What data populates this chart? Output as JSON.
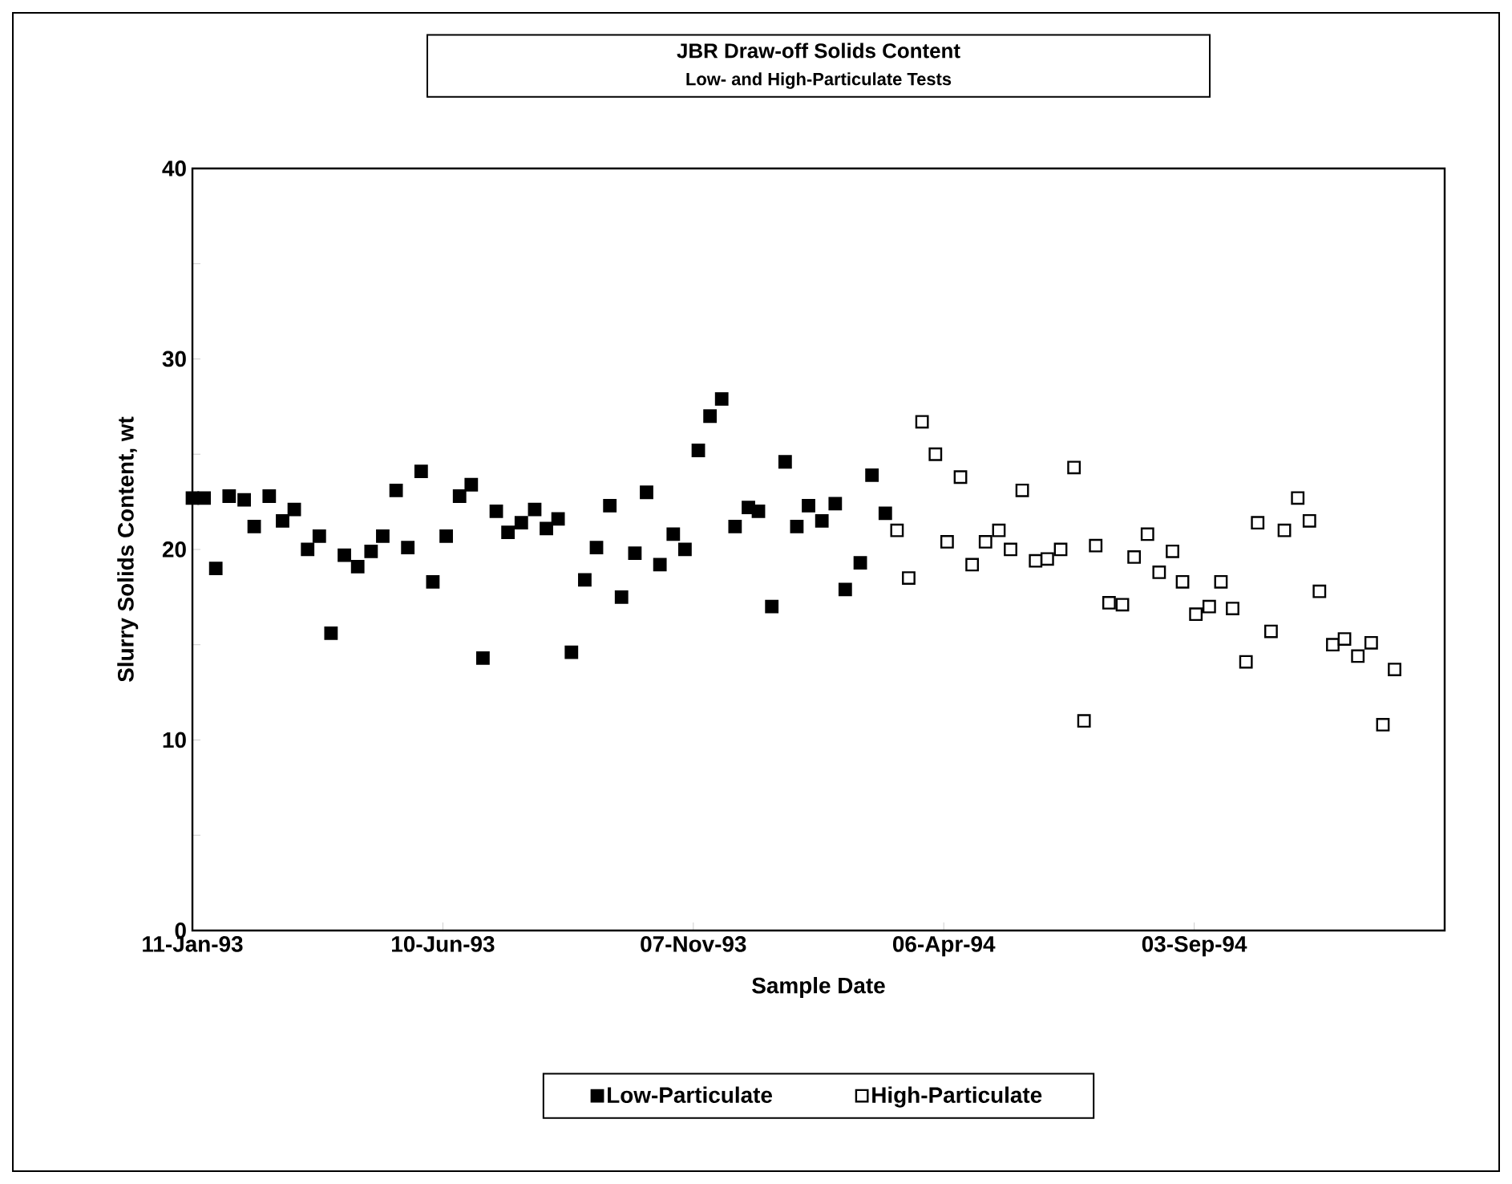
{
  "chart_data": {
    "type": "scatter",
    "title": "JBR Draw-off Solids Content",
    "subtitle": "Low- and High-Particulate Tests",
    "xlabel": "Sample Date",
    "ylabel": "Slurry Solids Content, wt",
    "xlim": [
      "1993-01-11",
      "1995-01-31"
    ],
    "xticks": [
      {
        "value": "1993-01-11",
        "label": "11-Jan-93"
      },
      {
        "value": "1993-06-10",
        "label": "10-Jun-93"
      },
      {
        "value": "1993-11-07",
        "label": "07-Nov-93"
      },
      {
        "value": "1994-04-06",
        "label": "06-Apr-94"
      },
      {
        "value": "1994-09-03",
        "label": "03-Sep-94"
      }
    ],
    "ylim": [
      0,
      40
    ],
    "yticks": [
      0,
      {
        "value": 5,
        "label": null
      },
      10,
      {
        "value": 15,
        "label": null
      },
      20,
      {
        "value": 25,
        "label": null
      },
      30,
      {
        "value": 35,
        "label": null
      },
      40
    ],
    "marker": "square",
    "legend": "bottom",
    "grid": false,
    "series": [
      {
        "name": "Low-Particulate",
        "color": "#000000",
        "x": [
          "1993-01-11",
          "1993-01-18",
          "1993-01-25",
          "1993-02-02",
          "1993-02-11",
          "1993-02-17",
          "1993-02-26",
          "1993-03-06",
          "1993-03-13",
          "1993-03-21",
          "1993-03-28",
          "1993-04-04",
          "1993-04-12",
          "1993-04-20",
          "1993-04-28",
          "1993-05-05",
          "1993-05-13",
          "1993-05-20",
          "1993-05-28",
          "1993-06-04",
          "1993-06-12",
          "1993-06-20",
          "1993-06-27",
          "1993-07-04",
          "1993-07-12",
          "1993-07-19",
          "1993-07-27",
          "1993-08-04",
          "1993-08-11",
          "1993-08-18",
          "1993-08-26",
          "1993-09-03",
          "1993-09-10",
          "1993-09-18",
          "1993-09-25",
          "1993-10-03",
          "1993-10-10",
          "1993-10-18",
          "1993-10-26",
          "1993-11-02",
          "1993-11-10",
          "1993-11-17",
          "1993-11-24",
          "1993-12-02",
          "1993-12-10",
          "1993-12-16",
          "1993-12-24",
          "1994-01-01",
          "1994-01-08",
          "1994-01-15",
          "1994-01-23",
          "1994-01-31",
          "1994-02-06",
          "1994-02-15",
          "1994-02-22",
          "1994-03-02"
        ],
        "values": [
          22.7,
          22.7,
          19.0,
          22.8,
          22.6,
          21.2,
          22.8,
          21.5,
          22.1,
          20.0,
          20.7,
          15.6,
          19.7,
          19.1,
          19.9,
          20.7,
          23.1,
          20.1,
          24.1,
          18.3,
          20.7,
          22.8,
          23.4,
          14.3,
          22.0,
          20.9,
          21.4,
          22.1,
          21.1,
          21.6,
          14.6,
          18.4,
          20.1,
          22.3,
          17.5,
          19.8,
          23.0,
          19.2,
          20.8,
          20.0,
          25.2,
          27.0,
          27.9,
          21.2,
          22.2,
          22.0,
          17.0,
          24.6,
          21.2,
          22.3,
          21.5,
          22.4,
          17.9,
          19.3,
          23.9,
          21.9
        ]
      },
      {
        "name": "High-Particulate",
        "color": "#000000",
        "x": [
          "1994-03-09",
          "1994-03-16",
          "1994-03-24",
          "1994-04-01",
          "1994-04-08",
          "1994-04-16",
          "1994-04-23",
          "1994-05-01",
          "1994-05-09",
          "1994-05-16",
          "1994-05-23",
          "1994-05-31",
          "1994-06-07",
          "1994-06-15",
          "1994-06-23",
          "1994-06-29",
          "1994-07-06",
          "1994-07-14",
          "1994-07-22",
          "1994-07-29",
          "1994-08-06",
          "1994-08-13",
          "1994-08-21",
          "1994-08-27",
          "1994-09-04",
          "1994-09-12",
          "1994-09-19",
          "1994-09-26",
          "1994-10-04",
          "1994-10-11",
          "1994-10-19",
          "1994-10-27",
          "1994-11-04",
          "1994-11-11",
          "1994-11-17",
          "1994-11-25",
          "1994-12-02",
          "1994-12-10",
          "1994-12-18",
          "1994-12-25",
          "1995-01-01"
        ],
        "values": [
          21.0,
          18.5,
          26.7,
          25.0,
          20.4,
          23.8,
          19.2,
          20.4,
          21.0,
          20.0,
          23.1,
          19.4,
          19.5,
          20.0,
          24.3,
          11.0,
          20.2,
          17.2,
          17.1,
          19.6,
          20.8,
          18.8,
          19.9,
          18.3,
          16.6,
          17.0,
          18.3,
          16.9,
          14.1,
          21.4,
          15.7,
          21.0,
          22.7,
          21.5,
          17.8,
          15.0,
          15.3,
          14.4,
          15.1,
          10.8,
          13.7
        ]
      }
    ]
  }
}
